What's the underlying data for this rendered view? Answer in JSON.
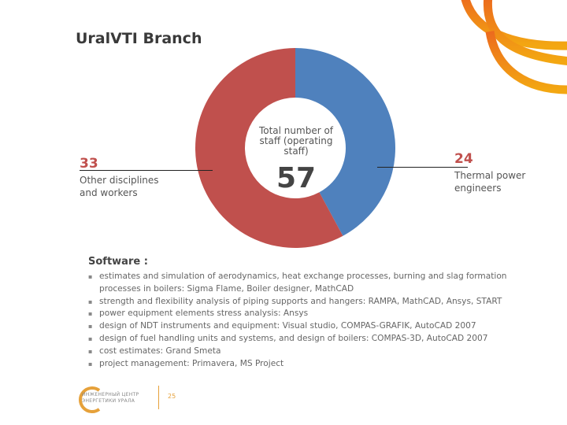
{
  "title": "UralVTI Branch",
  "chart_data": {
    "type": "pie",
    "style": "donut",
    "center_label": "Total number of staff (operating staff)",
    "total": "57",
    "slices": [
      {
        "label": "Thermal power engineers",
        "value": 24,
        "color": "#4f81bd"
      },
      {
        "label": "Other disciplines and workers",
        "value": 33,
        "color": "#c0504d"
      }
    ]
  },
  "labels": {
    "left_value": "33",
    "left_text": "Other disciplines and workers",
    "right_value": "24",
    "right_text": "Thermal power engineers"
  },
  "software": {
    "heading": "Software :",
    "items": [
      "estimates and simulation of aerodynamics,  heat exchange processes, burning and slag formation processes in boilers: Sigma Flame, Boiler designer,  MathCAD",
      "strength and flexibility analysis of piping supports and hangers:   RAMPA, MathCAD, Ansys, START",
      "power equipment elements stress analysis:  Ansys",
      "design of NDT instruments and equipment: Visual studio, COMPAS-GRAFIK, AutoCAD 2007",
      "design of fuel handling units and systems, and design of boilers: COMPAS-3D, AutoCAD 2007",
      "cost estimates: Grand Smeta",
      "project management: Primavera,  MS Project"
    ]
  },
  "footer": {
    "page_number": "25",
    "logo_text": "ИНЖЕНЕРНЫЙ ЦЕНТР ЭНЕРГЕТИКИ УРАЛА"
  },
  "colors": {
    "accent": "#e6a13a",
    "blue": "#4f81bd",
    "red": "#c0504d"
  }
}
